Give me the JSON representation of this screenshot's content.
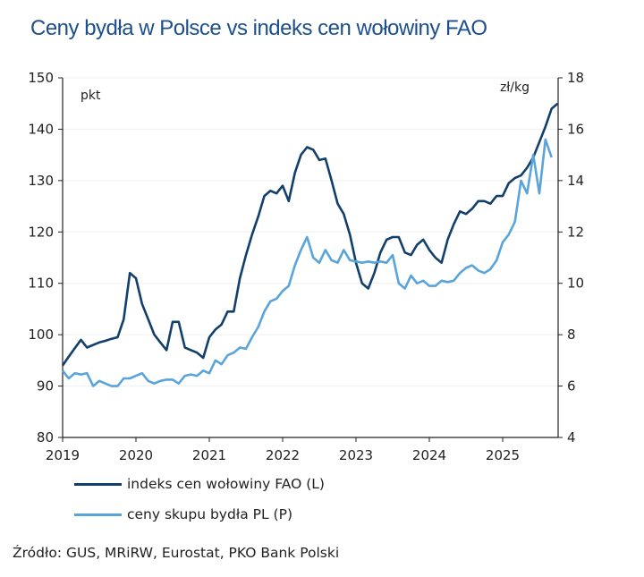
{
  "chart_data": {
    "type": "line",
    "title": "Ceny bydła w Polsce vs indeks cen wołowiny FAO",
    "left_axis": {
      "unit_label": "pkt",
      "range": [
        80,
        150
      ],
      "ticks": [
        "80",
        "90",
        "100",
        "110",
        "120",
        "130",
        "140",
        "150"
      ]
    },
    "right_axis": {
      "unit_label": "zł/kg",
      "range": [
        4,
        18
      ],
      "ticks": [
        "4",
        "6",
        "8",
        "10",
        "12",
        "14",
        "16",
        "18"
      ]
    },
    "x_axis": {
      "ticks": [
        "2019",
        "2020",
        "2021",
        "2022",
        "2023",
        "2024",
        "2025"
      ],
      "start": "2019-01",
      "frequency": "monthly"
    },
    "grid": "horizontal",
    "legend_placement": "bottom-left",
    "series": [
      {
        "name": "indeks cen wołowiny FAO (L)",
        "axis": "left",
        "color": "#123f6b",
        "values": [
          94,
          95.7,
          97.4,
          99,
          97.5,
          98,
          98.5,
          98.8,
          99.2,
          99.5,
          103,
          112,
          111,
          106,
          103,
          100,
          98.5,
          97,
          102.5,
          102.5,
          97.5,
          97,
          96.5,
          95.5,
          99.5,
          101,
          102,
          104.5,
          104.5,
          111,
          115.5,
          119.5,
          123,
          127,
          128,
          127.5,
          129,
          126,
          131.5,
          135,
          136.5,
          136,
          134,
          134.3,
          130,
          125.5,
          123.5,
          119.5,
          114,
          110,
          109,
          112,
          116,
          118.5,
          119,
          119,
          116,
          115.5,
          117.5,
          118.5,
          116.5,
          115,
          114,
          118.5,
          121.5,
          124,
          123.5,
          124.5,
          126,
          126,
          125.5,
          127,
          127,
          129.5,
          130.5,
          131,
          132.5,
          134.5,
          137.5,
          140.5,
          144,
          145
        ]
      },
      {
        "name": "ceny skupu bydła PL (P)",
        "axis": "right",
        "color": "#5aa4dc",
        "values": [
          6.6,
          6.3,
          6.5,
          6.45,
          6.5,
          6.0,
          6.2,
          6.1,
          6.0,
          6.0,
          6.3,
          6.3,
          6.4,
          6.5,
          6.2,
          6.1,
          6.2,
          6.25,
          6.25,
          6.1,
          6.4,
          6.45,
          6.4,
          6.6,
          6.5,
          7.0,
          6.85,
          7.2,
          7.3,
          7.5,
          7.45,
          7.9,
          8.3,
          8.9,
          9.3,
          9.4,
          9.7,
          9.9,
          10.7,
          11.3,
          11.8,
          11.0,
          10.8,
          11.3,
          10.9,
          10.8,
          11.3,
          10.9,
          10.85,
          10.8,
          10.85,
          10.8,
          10.85,
          10.8,
          11.1,
          10.0,
          9.8,
          10.3,
          10.0,
          10.1,
          9.9,
          9.9,
          10.1,
          10.05,
          10.1,
          10.4,
          10.6,
          10.7,
          10.5,
          10.4,
          10.55,
          10.9,
          11.6,
          11.9,
          12.4,
          14.0,
          13.5,
          15.0,
          13.5,
          15.6,
          14.9
        ]
      }
    ]
  },
  "source": "Źródło: GUS, MRiRW, Eurostat, PKO Bank Polski"
}
